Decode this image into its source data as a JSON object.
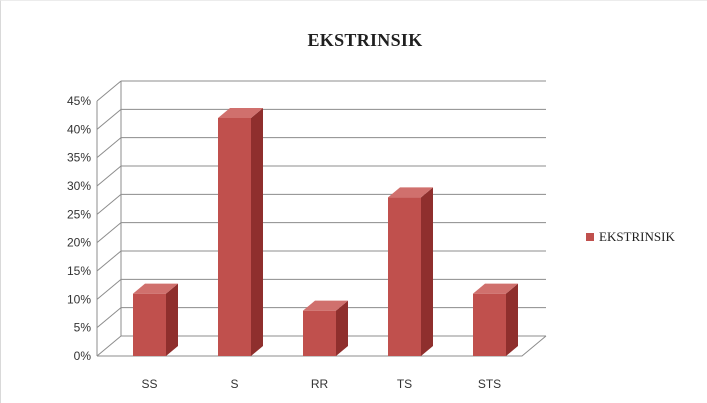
{
  "chart_data": {
    "type": "bar",
    "title": "EKSTRINSIK",
    "xlabel": "",
    "ylabel": "",
    "categories": [
      "SS",
      "S",
      "RR",
      "TS",
      "STS"
    ],
    "series": [
      {
        "name": "EKSTRINSIK",
        "values": [
          0.11,
          0.42,
          0.08,
          0.28,
          0.11
        ],
        "color": "#c0504d"
      }
    ],
    "ylim": [
      0,
      0.45
    ],
    "y_ticks": [
      "0%",
      "5%",
      "10%",
      "15%",
      "20%",
      "25%",
      "30%",
      "35%",
      "40%",
      "45%"
    ],
    "grid": true,
    "three_d": true,
    "legend_position": "right"
  }
}
